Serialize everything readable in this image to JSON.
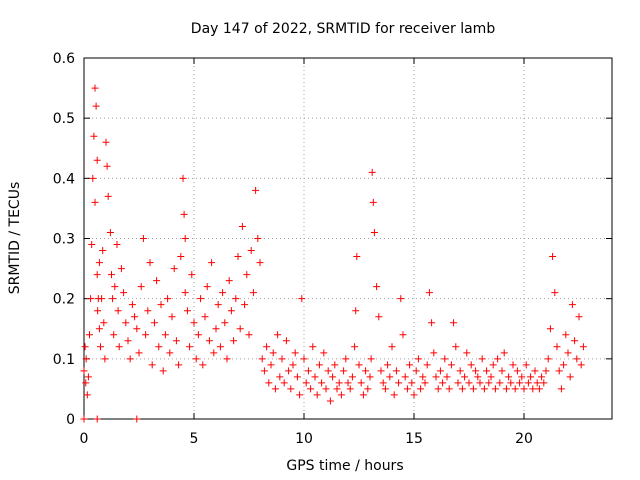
{
  "chart_data": {
    "type": "scatter",
    "title": "Day 147 of 2022, SRMTID for receiver lamb",
    "xlabel": "GPS time / hours",
    "ylabel": "SRMTID / TECUs",
    "xlim": [
      0,
      24
    ],
    "ylim": [
      0,
      0.6
    ],
    "xticks": [
      0,
      5,
      10,
      15,
      20
    ],
    "xtick_labels": [
      "0",
      "5",
      "10",
      "15",
      "20"
    ],
    "yticks": [
      0,
      0.1,
      0.2,
      0.3,
      0.4,
      0.5,
      0.6
    ],
    "ytick_labels": [
      "0",
      "0.1",
      "0.2",
      "0.3",
      "0.4",
      "0.5",
      "0.6"
    ],
    "grid": true,
    "marker": "+",
    "color": "#ff0000",
    "series": [
      {
        "name": "SRMTID",
        "x": [
          0.0,
          0.05,
          0.08,
          0.1,
          0.15,
          0.2,
          0.25,
          0.3,
          0.35,
          0.4,
          0.45,
          0.5,
          0.5,
          0.55,
          0.6,
          0.6,
          0.62,
          0.65,
          0.7,
          0.7,
          0.75,
          0.8,
          0.85,
          0.9,
          0.95,
          1.0,
          1.05,
          1.1,
          1.2,
          1.25,
          1.3,
          1.35,
          1.4,
          1.5,
          1.55,
          1.6,
          1.7,
          1.8,
          1.9,
          2.0,
          2.1,
          2.2,
          2.3,
          2.4,
          2.5,
          2.6,
          2.7,
          2.8,
          2.9,
          3.0,
          3.1,
          3.2,
          3.3,
          3.4,
          3.5,
          3.6,
          3.7,
          3.8,
          3.9,
          4.0,
          4.1,
          4.2,
          4.3,
          4.4,
          4.5,
          4.55,
          4.6,
          4.6,
          4.7,
          4.8,
          4.9,
          5.0,
          5.1,
          5.2,
          5.3,
          5.4,
          5.5,
          5.6,
          5.7,
          5.8,
          5.9,
          6.0,
          6.1,
          6.2,
          6.3,
          6.4,
          6.5,
          6.6,
          6.7,
          6.8,
          6.9,
          7.0,
          7.1,
          7.2,
          7.3,
          7.4,
          7.5,
          7.6,
          7.7,
          7.8,
          7.9,
          8.0,
          8.1,
          8.2,
          8.3,
          8.4,
          8.5,
          8.6,
          8.7,
          8.8,
          8.9,
          9.0,
          9.1,
          9.2,
          9.3,
          9.4,
          9.5,
          9.6,
          9.7,
          9.8,
          9.9,
          10.0,
          10.1,
          10.2,
          10.3,
          10.4,
          10.5,
          10.6,
          10.7,
          10.8,
          10.9,
          11.0,
          11.1,
          11.2,
          11.3,
          11.4,
          11.5,
          11.6,
          11.7,
          11.8,
          11.9,
          12.0,
          12.1,
          12.2,
          12.3,
          12.35,
          12.4,
          12.5,
          12.6,
          12.7,
          12.8,
          12.9,
          13.0,
          13.05,
          13.1,
          13.15,
          13.2,
          13.3,
          13.4,
          13.5,
          13.6,
          13.7,
          13.8,
          13.9,
          14.0,
          14.1,
          14.2,
          14.3,
          14.4,
          14.5,
          14.6,
          14.7,
          14.8,
          14.9,
          15.0,
          15.1,
          15.2,
          15.3,
          15.4,
          15.5,
          15.6,
          15.7,
          15.8,
          15.9,
          16.0,
          16.1,
          16.2,
          16.3,
          16.4,
          16.5,
          16.6,
          16.7,
          16.8,
          16.9,
          17.0,
          17.1,
          17.2,
          17.3,
          17.4,
          17.5,
          17.6,
          17.7,
          17.8,
          17.9,
          18.0,
          18.1,
          18.2,
          18.3,
          18.4,
          18.5,
          18.6,
          18.7,
          18.8,
          18.9,
          19.0,
          19.1,
          19.2,
          19.3,
          19.4,
          19.5,
          19.6,
          19.7,
          19.8,
          19.9,
          20.0,
          20.1,
          20.2,
          20.3,
          20.4,
          20.5,
          20.6,
          20.7,
          20.8,
          20.9,
          21.0,
          21.1,
          21.2,
          21.3,
          21.4,
          21.5,
          21.6,
          21.7,
          21.8,
          21.9,
          22.0,
          22.1,
          22.2,
          22.3,
          22.4,
          22.5,
          22.6,
          22.7,
          0.0,
          0.6,
          2.4
        ],
        "y": [
          0.08,
          0.12,
          0.06,
          0.1,
          0.04,
          0.07,
          0.14,
          0.2,
          0.29,
          0.4,
          0.47,
          0.55,
          0.36,
          0.52,
          0.43,
          0.24,
          0.18,
          0.2,
          0.15,
          0.26,
          0.12,
          0.2,
          0.28,
          0.16,
          0.1,
          0.46,
          0.42,
          0.37,
          0.31,
          0.24,
          0.2,
          0.14,
          0.22,
          0.29,
          0.18,
          0.12,
          0.25,
          0.21,
          0.16,
          0.13,
          0.1,
          0.19,
          0.17,
          0.15,
          0.11,
          0.22,
          0.3,
          0.14,
          0.18,
          0.26,
          0.09,
          0.16,
          0.23,
          0.12,
          0.19,
          0.08,
          0.14,
          0.2,
          0.11,
          0.17,
          0.25,
          0.13,
          0.09,
          0.27,
          0.4,
          0.34,
          0.21,
          0.3,
          0.18,
          0.12,
          0.24,
          0.16,
          0.1,
          0.14,
          0.2,
          0.09,
          0.17,
          0.22,
          0.13,
          0.26,
          0.11,
          0.15,
          0.19,
          0.12,
          0.21,
          0.16,
          0.1,
          0.23,
          0.18,
          0.13,
          0.2,
          0.27,
          0.15,
          0.32,
          0.19,
          0.24,
          0.14,
          0.28,
          0.21,
          0.38,
          0.3,
          0.26,
          0.1,
          0.08,
          0.12,
          0.06,
          0.09,
          0.11,
          0.05,
          0.14,
          0.07,
          0.1,
          0.06,
          0.13,
          0.08,
          0.05,
          0.09,
          0.11,
          0.07,
          0.04,
          0.2,
          0.1,
          0.06,
          0.08,
          0.05,
          0.12,
          0.07,
          0.04,
          0.09,
          0.06,
          0.11,
          0.05,
          0.08,
          0.03,
          0.07,
          0.09,
          0.05,
          0.06,
          0.04,
          0.08,
          0.1,
          0.06,
          0.05,
          0.07,
          0.12,
          0.18,
          0.27,
          0.09,
          0.06,
          0.04,
          0.08,
          0.05,
          0.07,
          0.1,
          0.41,
          0.36,
          0.31,
          0.22,
          0.17,
          0.08,
          0.06,
          0.05,
          0.09,
          0.07,
          0.12,
          0.04,
          0.08,
          0.06,
          0.2,
          0.14,
          0.07,
          0.05,
          0.09,
          0.06,
          0.04,
          0.08,
          0.1,
          0.05,
          0.07,
          0.06,
          0.09,
          0.21,
          0.16,
          0.11,
          0.07,
          0.05,
          0.08,
          0.06,
          0.1,
          0.07,
          0.05,
          0.09,
          0.16,
          0.12,
          0.06,
          0.08,
          0.05,
          0.07,
          0.11,
          0.06,
          0.09,
          0.05,
          0.08,
          0.07,
          0.06,
          0.1,
          0.05,
          0.08,
          0.06,
          0.07,
          0.09,
          0.05,
          0.1,
          0.06,
          0.08,
          0.11,
          0.05,
          0.07,
          0.06,
          0.09,
          0.05,
          0.08,
          0.06,
          0.07,
          0.05,
          0.09,
          0.06,
          0.07,
          0.05,
          0.08,
          0.06,
          0.05,
          0.07,
          0.06,
          0.08,
          0.1,
          0.15,
          0.27,
          0.21,
          0.12,
          0.08,
          0.05,
          0.09,
          0.14,
          0.11,
          0.07,
          0.19,
          0.13,
          0.1,
          0.17,
          0.09,
          0.12,
          0.0,
          0.0,
          0.0
        ]
      }
    ]
  }
}
